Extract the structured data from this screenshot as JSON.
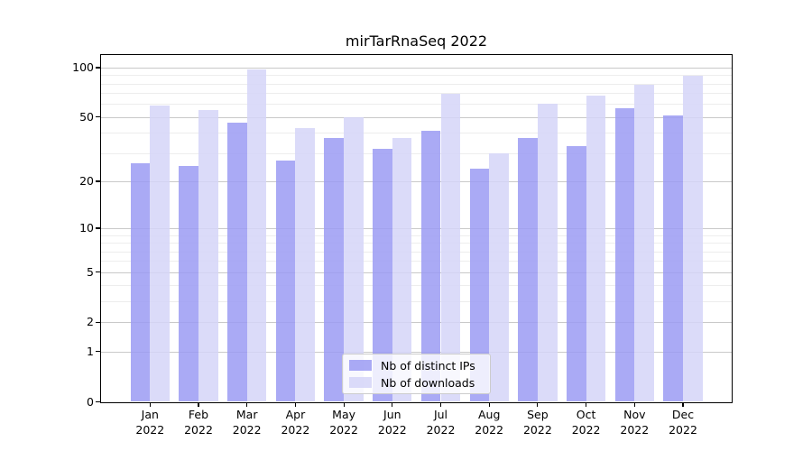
{
  "chart_data": {
    "type": "bar",
    "title": "mirTarRnaSeq 2022",
    "categories": [
      "Jan",
      "Feb",
      "Mar",
      "Apr",
      "May",
      "Jun",
      "Jul",
      "Aug",
      "Sep",
      "Oct",
      "Nov",
      "Dec"
    ],
    "category_year_suffix": "2022",
    "series": [
      {
        "name": "Nb of distinct IPs",
        "color": "rgba(155,155,243,0.85)",
        "values": [
          26,
          25,
          46,
          27,
          37,
          32,
          41,
          24,
          37,
          33,
          57,
          51
        ]
      },
      {
        "name": "Nb of downloads",
        "color": "rgba(213,213,248,0.85)",
        "values": [
          59,
          55,
          97,
          43,
          50,
          37,
          69,
          30,
          60,
          68,
          79,
          89
        ]
      }
    ],
    "yscale": "log1p",
    "ylim": [
      0,
      119
    ],
    "y_ticks": [
      0,
      1,
      2,
      5,
      10,
      20,
      50,
      100
    ],
    "y_minor_gridlines": [
      3,
      4,
      6,
      7,
      8,
      9,
      30,
      40,
      60,
      70,
      80,
      90
    ],
    "grid": true,
    "legend_position": "lower center",
    "legend_labels": [
      "Nb of distinct IPs",
      "Nb of downloads"
    ]
  },
  "colors": {
    "background": "#ffffff",
    "major_grid": "#c9c9c9",
    "minor_grid": "#ededed",
    "frame": "#000000",
    "text": "#000000",
    "legend_border": "#cccccc",
    "legend_bg": "rgba(255,255,255,0.8)"
  }
}
